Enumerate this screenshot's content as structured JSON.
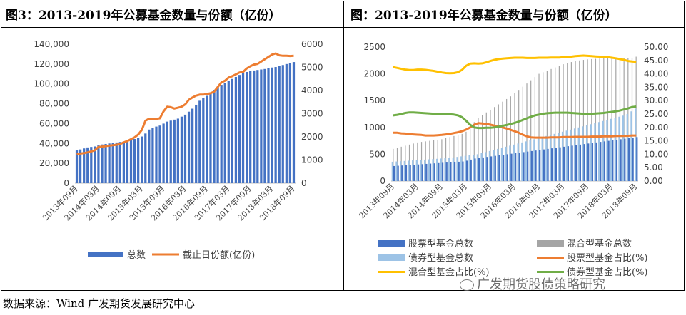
{
  "left_title": "图3：2013-2019年公募基金数量与份额（亿份）",
  "right_title": "图：2013-2019年公募基金数量与份额（亿份）",
  "source_text": "数据来源：Wind 广发期货发展研究中心",
  "watermark_text": "广发期货股债策略研究",
  "colors": {
    "bar_dark": "#4472c4",
    "bar_light": "#9dc3e6",
    "bar_gray": "#a5a5a5",
    "orange": "#ed7d31",
    "yellow": "#ffc000",
    "green": "#70ad47"
  },
  "chart_data": [
    {
      "id": "left",
      "type": "bar+line",
      "title": "图3：2013-2019年公募基金数量与份额（亿份）",
      "x_tick_labels": [
        "2013年09月",
        "2014年03月",
        "2014年09月",
        "2015年03月",
        "2015年09月",
        "2016年03月",
        "2016年09月",
        "2017年03月",
        "2017年09月",
        "2018年03月",
        "2018年09月"
      ],
      "y_left": {
        "min": 0,
        "max": 140000,
        "ticks": [
          "0",
          "20,000",
          "40,000",
          "60,000",
          "80,000",
          "100,000",
          "120,000",
          "140,000"
        ]
      },
      "y_right": {
        "min": 0,
        "max": 6000,
        "ticks": [
          "0",
          "1000",
          "2000",
          "3000",
          "4000",
          "5000",
          "6000"
        ]
      },
      "legend": [
        "总数",
        "截止日份额(亿份)"
      ],
      "series": [
        {
          "name": "总数",
          "axis": "left",
          "type": "bar",
          "values": [
            33000,
            34000,
            35000,
            36000,
            36500,
            37000,
            38000,
            39000,
            39500,
            40000,
            40500,
            41000,
            41500,
            42000,
            43000,
            43500,
            44500,
            45500,
            47000,
            50000,
            54000,
            56000,
            57000,
            58000,
            60000,
            62000,
            63000,
            64000,
            65000,
            67000,
            69000,
            72000,
            75000,
            79000,
            83000,
            86000,
            88000,
            90000,
            94000,
            97000,
            99000,
            101000,
            103000,
            105000,
            107000,
            109000,
            111000,
            112000,
            113000,
            113500,
            114000,
            114500,
            115000,
            116000,
            116500,
            117000,
            118000,
            119000,
            120000,
            121000,
            122000
          ]
        },
        {
          "name": "截止日份额(亿份)",
          "axis": "right",
          "type": "line",
          "values": [
            1250,
            1280,
            1300,
            1330,
            1370,
            1420,
            1560,
            1580,
            1600,
            1620,
            1640,
            1660,
            1690,
            1760,
            1820,
            1900,
            1980,
            2100,
            2300,
            2700,
            2780,
            2760,
            2780,
            2800,
            3100,
            3300,
            3280,
            3220,
            3260,
            3300,
            3400,
            3600,
            3700,
            3780,
            3820,
            3820,
            3850,
            3880,
            3950,
            4150,
            4350,
            4420,
            4560,
            4620,
            4700,
            4780,
            4800,
            4950,
            5050,
            5120,
            5150,
            5250,
            5350,
            5450,
            5550,
            5600,
            5520,
            5500,
            5500,
            5490,
            5500
          ]
        }
      ]
    },
    {
      "id": "right",
      "type": "bar+line",
      "title": "图：2013-2019年公募基金数量与份额（亿份）",
      "x_tick_labels": [
        "2013年09月",
        "2014年03月",
        "2014年09月",
        "2015年03月",
        "2015年09月",
        "2016年03月",
        "2016年09月",
        "2017年03月",
        "2017年09月",
        "2018年03月",
        "2018年09月"
      ],
      "y_left": {
        "min": 0,
        "max": 2500,
        "ticks": [
          "0",
          "500",
          "1000",
          "1500",
          "2000",
          "2500"
        ]
      },
      "y_right": {
        "min": 0,
        "max": 50,
        "ticks": [
          "0.00",
          "5.00",
          "10.00",
          "15.00",
          "20.00",
          "25.00",
          "30.00",
          "35.00",
          "40.00",
          "45.00",
          "50.00"
        ]
      },
      "legend": [
        "股票型基金总数",
        "混合型基金总数",
        "债券型基金总数",
        "股票型基金占比(%)",
        "混合型基金占比(%)",
        "债券型基金占比(%)"
      ],
      "series": [
        {
          "name": "股票型基金总数",
          "axis": "left",
          "type": "bar",
          "values": [
            280,
            285,
            290,
            295,
            300,
            305,
            310,
            315,
            320,
            325,
            330,
            335,
            340,
            345,
            350,
            355,
            360,
            365,
            380,
            400,
            420,
            430,
            440,
            450,
            460,
            470,
            480,
            490,
            500,
            510,
            520,
            530,
            540,
            550,
            560,
            570,
            580,
            590,
            600,
            610,
            620,
            630,
            640,
            650,
            660,
            670,
            680,
            690,
            700,
            710,
            720,
            730,
            740,
            750,
            760,
            770,
            780,
            790,
            800,
            810,
            820
          ]
        },
        {
          "name": "混合型基金总数",
          "axis": "left",
          "type": "bar",
          "values": [
            600,
            620,
            640,
            660,
            680,
            700,
            720,
            730,
            740,
            750,
            760,
            770,
            780,
            800,
            820,
            840,
            860,
            880,
            920,
            1000,
            1100,
            1180,
            1230,
            1280,
            1330,
            1380,
            1430,
            1480,
            1530,
            1580,
            1640,
            1700,
            1760,
            1820,
            1880,
            1940,
            2000,
            2030,
            2060,
            2090,
            2120,
            2150,
            2180,
            2200,
            2220,
            2240,
            2250,
            2260,
            2270,
            2275,
            2280,
            2285,
            2290,
            2295,
            2300,
            2300,
            2300,
            2300,
            2300,
            2300,
            2320
          ]
        },
        {
          "name": "债券型基金总数",
          "axis": "left",
          "type": "bar",
          "values": [
            360,
            365,
            370,
            375,
            380,
            385,
            390,
            395,
            400,
            405,
            410,
            415,
            420,
            425,
            430,
            440,
            450,
            460,
            470,
            480,
            490,
            500,
            520,
            540,
            560,
            580,
            600,
            620,
            640,
            660,
            680,
            700,
            720,
            740,
            760,
            780,
            800,
            820,
            840,
            860,
            880,
            900,
            920,
            940,
            960,
            980,
            1000,
            1020,
            1040,
            1060,
            1080,
            1100,
            1120,
            1140,
            1160,
            1180,
            1200,
            1220,
            1250,
            1300,
            1350
          ]
        },
        {
          "name": "股票型基金占比(%)",
          "axis": "right",
          "type": "line",
          "values": [
            18.0,
            18.0,
            17.8,
            17.7,
            17.5,
            17.4,
            17.3,
            17.2,
            17.0,
            17.0,
            17.0,
            17.1,
            17.2,
            17.4,
            17.6,
            17.9,
            18.2,
            18.6,
            19.2,
            20.0,
            21.0,
            21.6,
            21.5,
            21.3,
            21.0,
            20.7,
            20.4,
            20.0,
            19.6,
            19.1,
            18.6,
            18.0,
            17.3,
            16.7,
            16.3,
            16.2,
            16.2,
            16.2,
            16.2,
            16.3,
            16.3,
            16.3,
            16.4,
            16.4,
            16.4,
            16.5,
            16.5,
            16.5,
            16.5,
            16.6,
            16.6,
            16.6,
            16.7,
            16.7,
            16.7,
            16.8,
            16.8,
            16.8,
            16.9,
            17.0,
            17.0
          ]
        },
        {
          "name": "混合型基金占比(%)",
          "axis": "right",
          "type": "line",
          "values": [
            42.5,
            42.2,
            41.9,
            41.6,
            41.4,
            41.4,
            41.6,
            41.6,
            41.5,
            41.3,
            41.1,
            40.8,
            40.5,
            40.3,
            40.2,
            40.3,
            40.6,
            41.5,
            43.0,
            43.8,
            43.9,
            43.8,
            43.9,
            44.3,
            44.8,
            45.2,
            45.5,
            45.7,
            45.8,
            45.9,
            46.0,
            46.0,
            46.0,
            45.9,
            45.9,
            45.9,
            46.0,
            46.0,
            46.0,
            46.1,
            46.1,
            46.1,
            46.2,
            46.3,
            46.4,
            46.6,
            46.7,
            46.8,
            46.7,
            46.6,
            46.5,
            46.4,
            46.3,
            46.2,
            46.0,
            45.8,
            45.5,
            45.2,
            44.8,
            44.6,
            44.5
          ]
        },
        {
          "name": "债券型基金占比(%)",
          "axis": "right",
          "type": "line",
          "values": [
            24.5,
            24.7,
            25.0,
            25.4,
            25.6,
            25.6,
            25.5,
            25.4,
            25.3,
            25.2,
            25.1,
            25.0,
            24.9,
            24.9,
            24.9,
            24.8,
            24.5,
            23.8,
            22.5,
            21.0,
            20.0,
            19.8,
            19.8,
            19.9,
            19.9,
            20.0,
            20.3,
            20.6,
            20.9,
            21.3,
            21.7,
            22.2,
            22.8,
            23.4,
            24.0,
            24.5,
            24.8,
            25.1,
            25.3,
            25.4,
            25.5,
            25.5,
            25.5,
            25.5,
            25.4,
            25.3,
            25.2,
            25.1,
            25.1,
            25.1,
            25.2,
            25.3,
            25.4,
            25.6,
            25.8,
            26.0,
            26.3,
            26.7,
            27.1,
            27.6,
            27.8
          ]
        }
      ]
    }
  ]
}
